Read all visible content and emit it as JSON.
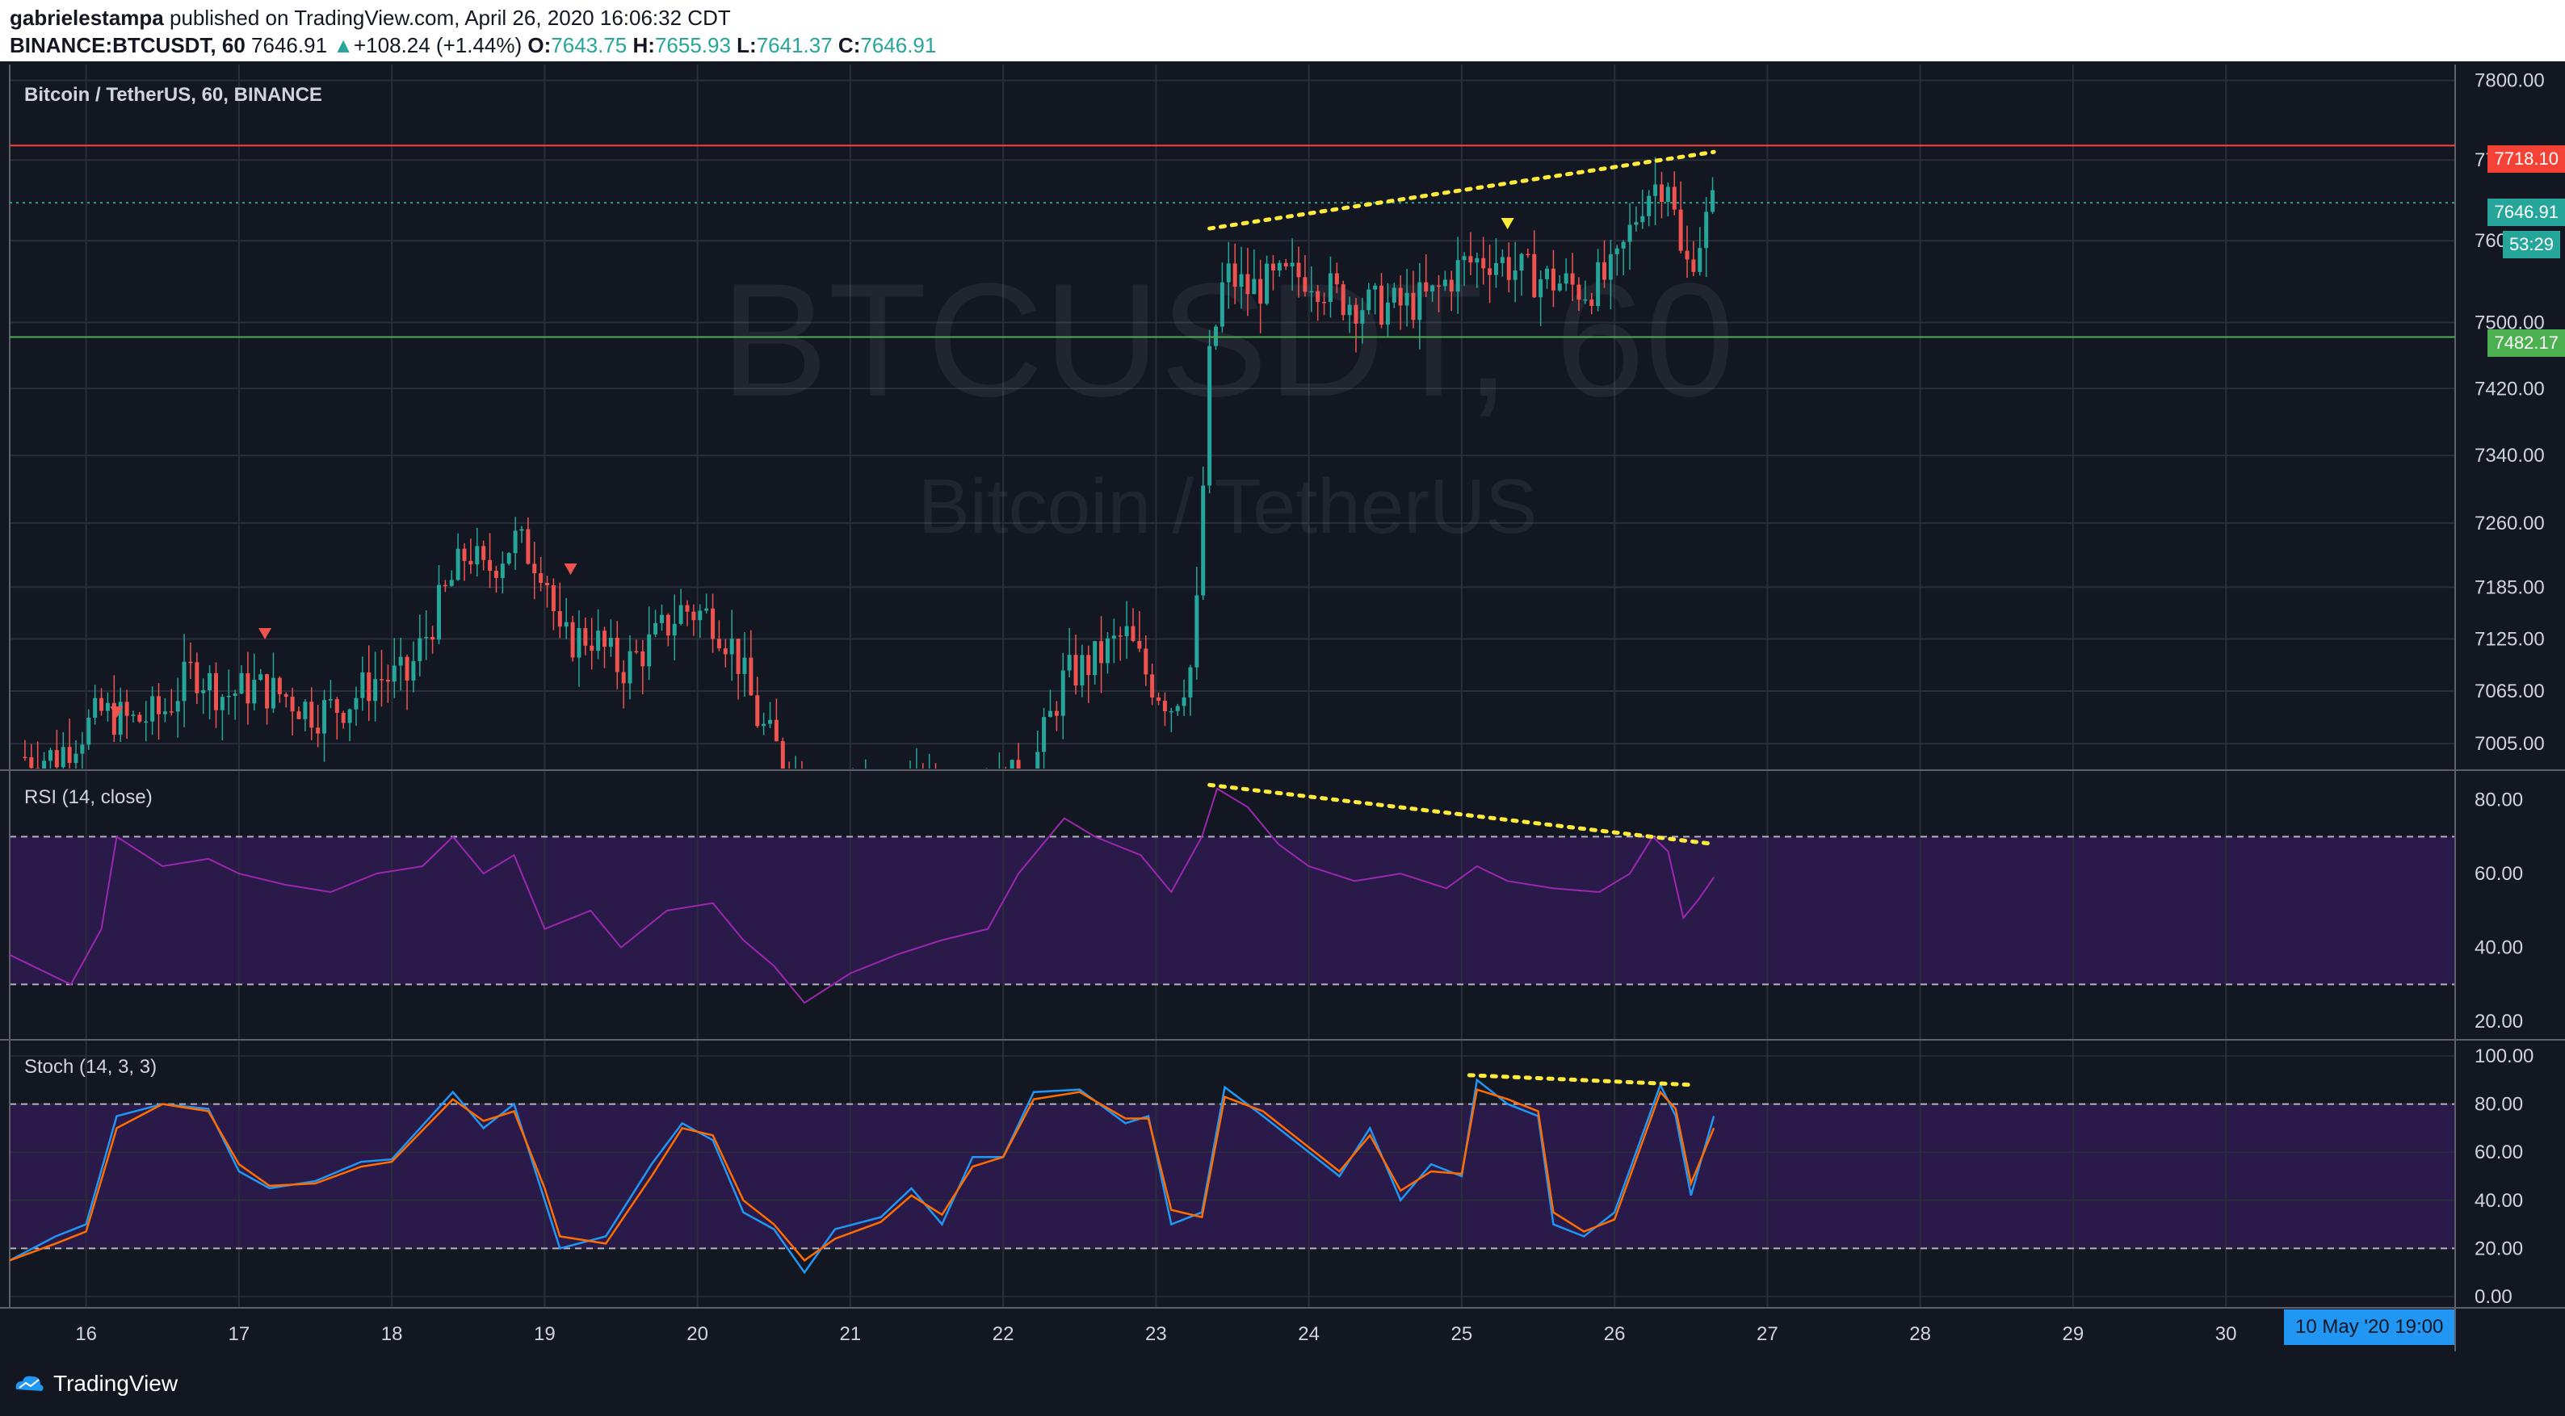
{
  "header": {
    "publisher": "gabrielestampa",
    "published_text": "published on TradingView.com, April 26, 2020 16:06:32 CDT",
    "symbol": "BINANCE:BTCUSDT, 60",
    "last": "7646.91",
    "change": "+108.24 (+1.44%)",
    "o_label": "O:",
    "o": "7643.75",
    "h_label": "H:",
    "h": "7655.93",
    "l_label": "L:",
    "l": "7641.37",
    "c_label": "C:",
    "c": "7646.91"
  },
  "main_pane": {
    "title": "Bitcoin / TetherUS, 60, BINANCE",
    "watermark_symbol": "BTCUSDT, 60",
    "watermark_name": "Bitcoin / TetherUS",
    "resistance_label": "7718.10",
    "last_label": "7646.91",
    "countdown_label": "53:29",
    "support_label": "7482.17"
  },
  "rsi_pane": {
    "title": "RSI (14, close)"
  },
  "stoch_pane": {
    "title": "Stoch (14, 3, 3)"
  },
  "time_axis": {
    "crosshair_label": "10 May '20   19:00"
  },
  "footer": {
    "brand": "TradingView"
  },
  "colors": {
    "background": "#131722",
    "grid": "#2a2e39",
    "up": "#26a69a",
    "down": "#ef5350",
    "rsi_line": "#9c27b0",
    "band": "#2d1b4e",
    "stoch_k": "#2196f3",
    "stoch_d": "#ff6d00",
    "trend": "#ffeb3b",
    "resistance": "#f44336",
    "support": "#4caf50"
  },
  "chart_data": [
    {
      "type": "candlestick",
      "title": "Bitcoin / TetherUS, 60, BINANCE",
      "x_ticks": [
        "16",
        "17",
        "18",
        "19",
        "20",
        "21",
        "22",
        "23",
        "24",
        "25",
        "26",
        "27",
        "28",
        "29",
        "30"
      ],
      "y_ticks": [
        "7800.00",
        "7700.00",
        "7600.00",
        "7500.00",
        "7420.00",
        "7340.00",
        "7260.00",
        "7185.00",
        "7125.00",
        "7065.00",
        "7005.00"
      ],
      "y_range": [
        6975,
        7820
      ],
      "y_scale": "log",
      "horizontal_lines": [
        {
          "label": "7718.10",
          "value": 7718.1,
          "color": "resistance"
        },
        {
          "label": "7646.91",
          "value": 7646.91,
          "color": "up",
          "style": "dotted"
        },
        {
          "label": "7482.17",
          "value": 7482.17,
          "color": "support"
        }
      ],
      "close_path": [
        [
          15.6,
          6990
        ],
        [
          15.8,
          6990
        ],
        [
          16.1,
          7040
        ],
        [
          16.3,
          7030
        ],
        [
          16.5,
          7040
        ],
        [
          16.7,
          7090
        ],
        [
          16.9,
          7060
        ],
        [
          17.1,
          7070
        ],
        [
          17.3,
          7060
        ],
        [
          17.5,
          7040
        ],
        [
          17.7,
          7050
        ],
        [
          17.9,
          7080
        ],
        [
          18.1,
          7080
        ],
        [
          18.3,
          7160
        ],
        [
          18.5,
          7230
        ],
        [
          18.6,
          7200
        ],
        [
          18.8,
          7240
        ],
        [
          19.0,
          7210
        ],
        [
          19.1,
          7120
        ],
        [
          19.3,
          7130
        ],
        [
          19.5,
          7090
        ],
        [
          19.7,
          7120
        ],
        [
          19.9,
          7160
        ],
        [
          20.1,
          7150
        ],
        [
          20.25,
          7110
        ],
        [
          20.4,
          7030
        ],
        [
          20.55,
          6990
        ],
        [
          20.7,
          6960
        ],
        [
          21.0,
          6950
        ],
        [
          21.5,
          6950
        ],
        [
          22.0,
          6955
        ],
        [
          22.2,
          6980
        ],
        [
          22.4,
          7080
        ],
        [
          22.6,
          7100
        ],
        [
          22.8,
          7130
        ],
        [
          22.95,
          7080
        ],
        [
          23.1,
          7050
        ],
        [
          23.25,
          7100
        ],
        [
          23.35,
          7450
        ],
        [
          23.45,
          7560
        ],
        [
          23.6,
          7540
        ],
        [
          23.8,
          7550
        ],
        [
          24.0,
          7560
        ],
        [
          24.2,
          7530
        ],
        [
          24.4,
          7520
        ],
        [
          24.6,
          7520
        ],
        [
          24.8,
          7530
        ],
        [
          25.0,
          7570
        ],
        [
          25.2,
          7580
        ],
        [
          25.4,
          7560
        ],
        [
          25.6,
          7550
        ],
        [
          25.8,
          7540
        ],
        [
          26.0,
          7560
        ],
        [
          26.2,
          7660
        ],
        [
          26.35,
          7680
        ],
        [
          26.45,
          7560
        ],
        [
          26.55,
          7600
        ],
        [
          26.65,
          7646
        ]
      ],
      "trendlines": [
        {
          "from": [
            23.35,
            7615
          ],
          "to": [
            26.65,
            7710
          ]
        }
      ],
      "markers": [
        {
          "x": 16.2,
          "y": 7040,
          "color": "down",
          "shape": "triangle-down"
        },
        {
          "x": 17.17,
          "y": 7130,
          "color": "down",
          "shape": "triangle-down"
        },
        {
          "x": 19.17,
          "y": 7205,
          "color": "down",
          "shape": "triangle-down"
        },
        {
          "x": 25.3,
          "y": 7620,
          "color": "trend",
          "shape": "triangle-down"
        }
      ]
    },
    {
      "type": "line",
      "title": "RSI (14, close)",
      "y_ticks": [
        "80.00",
        "60.00",
        "40.00",
        "20.00"
      ],
      "y_range": [
        15,
        88
      ],
      "bands": {
        "upper": 70,
        "lower": 30
      },
      "path": [
        [
          15.5,
          38
        ],
        [
          15.9,
          30
        ],
        [
          16.1,
          45
        ],
        [
          16.2,
          70
        ],
        [
          16.5,
          62
        ],
        [
          16.8,
          64
        ],
        [
          17.0,
          60
        ],
        [
          17.3,
          57
        ],
        [
          17.6,
          55
        ],
        [
          17.9,
          60
        ],
        [
          18.2,
          62
        ],
        [
          18.4,
          70
        ],
        [
          18.6,
          60
        ],
        [
          18.8,
          65
        ],
        [
          19.0,
          45
        ],
        [
          19.3,
          50
        ],
        [
          19.5,
          40
        ],
        [
          19.8,
          50
        ],
        [
          20.1,
          52
        ],
        [
          20.3,
          42
        ],
        [
          20.5,
          35
        ],
        [
          20.7,
          25
        ],
        [
          21.0,
          33
        ],
        [
          21.3,
          38
        ],
        [
          21.6,
          42
        ],
        [
          21.9,
          45
        ],
        [
          22.1,
          60
        ],
        [
          22.4,
          75
        ],
        [
          22.6,
          70
        ],
        [
          22.9,
          65
        ],
        [
          23.1,
          55
        ],
        [
          23.3,
          70
        ],
        [
          23.4,
          83
        ],
        [
          23.6,
          78
        ],
        [
          23.8,
          68
        ],
        [
          24.0,
          62
        ],
        [
          24.3,
          58
        ],
        [
          24.6,
          60
        ],
        [
          24.9,
          56
        ],
        [
          25.1,
          62
        ],
        [
          25.3,
          58
        ],
        [
          25.6,
          56
        ],
        [
          25.9,
          55
        ],
        [
          26.1,
          60
        ],
        [
          26.25,
          70
        ],
        [
          26.35,
          66
        ],
        [
          26.45,
          48
        ],
        [
          26.55,
          53
        ],
        [
          26.65,
          59
        ]
      ],
      "trendlines": [
        {
          "from": [
            23.35,
            84
          ],
          "to": [
            26.65,
            68
          ]
        }
      ]
    },
    {
      "type": "line",
      "title": "Stoch (14, 3, 3)",
      "y_ticks": [
        "100.00",
        "80.00",
        "60.00",
        "40.00",
        "20.00",
        "0.00"
      ],
      "y_range": [
        0,
        100
      ],
      "bands": {
        "upper": 80,
        "lower": 20
      },
      "series": [
        {
          "color": "stoch_k",
          "path": [
            [
              15.5,
              15
            ],
            [
              15.8,
              25
            ],
            [
              16.0,
              30
            ],
            [
              16.2,
              75
            ],
            [
              16.5,
              80
            ],
            [
              16.8,
              78
            ],
            [
              17.0,
              52
            ],
            [
              17.2,
              45
            ],
            [
              17.5,
              48
            ],
            [
              17.8,
              56
            ],
            [
              18.0,
              57
            ],
            [
              18.4,
              85
            ],
            [
              18.6,
              70
            ],
            [
              18.8,
              80
            ],
            [
              19.0,
              40
            ],
            [
              19.1,
              20
            ],
            [
              19.4,
              25
            ],
            [
              19.7,
              55
            ],
            [
              19.9,
              72
            ],
            [
              20.1,
              65
            ],
            [
              20.3,
              35
            ],
            [
              20.5,
              28
            ],
            [
              20.7,
              10
            ],
            [
              20.9,
              28
            ],
            [
              21.2,
              33
            ],
            [
              21.4,
              45
            ],
            [
              21.6,
              30
            ],
            [
              21.8,
              58
            ],
            [
              22.0,
              58
            ],
            [
              22.2,
              85
            ],
            [
              22.5,
              86
            ],
            [
              22.8,
              72
            ],
            [
              22.95,
              75
            ],
            [
              23.1,
              30
            ],
            [
              23.3,
              35
            ],
            [
              23.45,
              87
            ],
            [
              23.7,
              75
            ],
            [
              24.0,
              60
            ],
            [
              24.2,
              50
            ],
            [
              24.4,
              70
            ],
            [
              24.6,
              40
            ],
            [
              24.8,
              55
            ],
            [
              25.0,
              50
            ],
            [
              25.1,
              90
            ],
            [
              25.3,
              80
            ],
            [
              25.5,
              75
            ],
            [
              25.6,
              30
            ],
            [
              25.8,
              25
            ],
            [
              26.0,
              35
            ],
            [
              26.3,
              88
            ],
            [
              26.4,
              75
            ],
            [
              26.5,
              42
            ],
            [
              26.65,
              75
            ]
          ]
        },
        {
          "color": "stoch_d",
          "path": [
            [
              15.5,
              15
            ],
            [
              15.8,
              22
            ],
            [
              16.0,
              27
            ],
            [
              16.2,
              70
            ],
            [
              16.5,
              80
            ],
            [
              16.8,
              77
            ],
            [
              17.0,
              55
            ],
            [
              17.2,
              46
            ],
            [
              17.5,
              47
            ],
            [
              17.8,
              54
            ],
            [
              18.0,
              56
            ],
            [
              18.4,
              82
            ],
            [
              18.6,
              73
            ],
            [
              18.8,
              77
            ],
            [
              19.0,
              45
            ],
            [
              19.1,
              25
            ],
            [
              19.4,
              22
            ],
            [
              19.7,
              50
            ],
            [
              19.9,
              70
            ],
            [
              20.1,
              67
            ],
            [
              20.3,
              40
            ],
            [
              20.5,
              30
            ],
            [
              20.7,
              15
            ],
            [
              20.9,
              24
            ],
            [
              21.2,
              31
            ],
            [
              21.4,
              42
            ],
            [
              21.6,
              34
            ],
            [
              21.8,
              54
            ],
            [
              22.0,
              58
            ],
            [
              22.2,
              82
            ],
            [
              22.5,
              85
            ],
            [
              22.8,
              74
            ],
            [
              22.95,
              74
            ],
            [
              23.1,
              36
            ],
            [
              23.3,
              33
            ],
            [
              23.45,
              83
            ],
            [
              23.7,
              77
            ],
            [
              24.0,
              62
            ],
            [
              24.2,
              52
            ],
            [
              24.4,
              67
            ],
            [
              24.6,
              44
            ],
            [
              24.8,
              52
            ],
            [
              25.0,
              51
            ],
            [
              25.1,
              86
            ],
            [
              25.3,
              82
            ],
            [
              25.5,
              77
            ],
            [
              25.6,
              35
            ],
            [
              25.8,
              27
            ],
            [
              26.0,
              32
            ],
            [
              26.3,
              85
            ],
            [
              26.4,
              78
            ],
            [
              26.5,
              47
            ],
            [
              26.65,
              70
            ]
          ]
        }
      ],
      "trendlines": [
        {
          "from": [
            25.05,
            92
          ],
          "to": [
            26.5,
            88
          ]
        }
      ]
    }
  ]
}
